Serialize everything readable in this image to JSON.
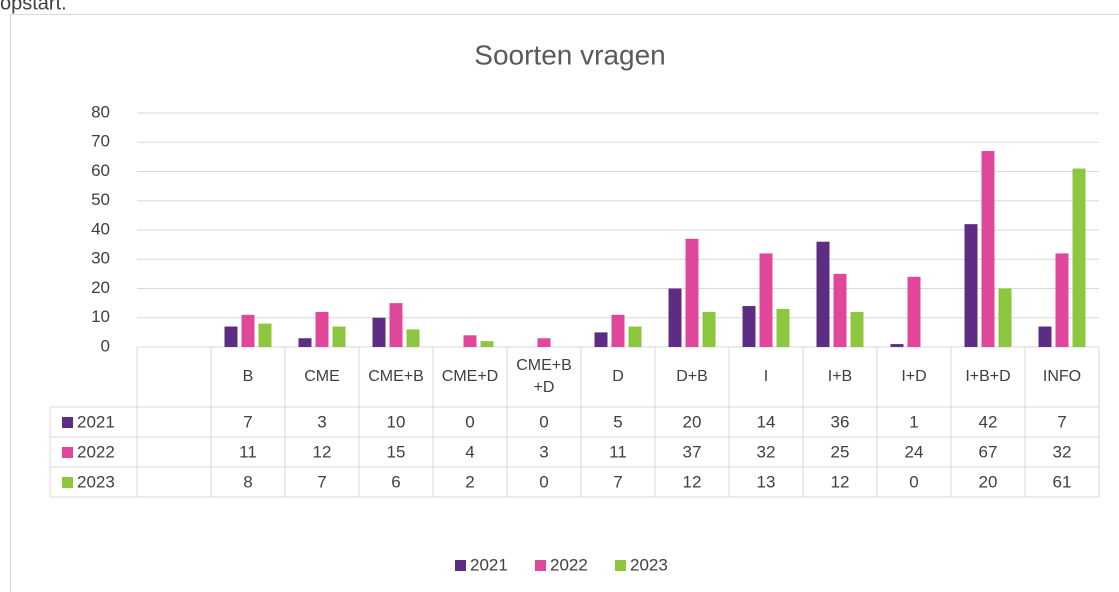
{
  "page_text": "opstart.",
  "chart_data": {
    "type": "bar",
    "title": "Soorten vragen",
    "categories": [
      null,
      "B",
      "CME",
      "CME+B",
      "CME+D",
      "CME+B+D",
      "D",
      "D+B",
      "I",
      "I+B",
      "I+D",
      "I+B+D",
      "INFO"
    ],
    "series": [
      {
        "name": "2021",
        "color": "#5c2d83",
        "values": [
          null,
          7,
          3,
          10,
          0,
          0,
          5,
          20,
          14,
          36,
          1,
          42,
          7
        ]
      },
      {
        "name": "2022",
        "color": "#e0479a",
        "values": [
          null,
          11,
          12,
          15,
          4,
          3,
          11,
          37,
          32,
          25,
          24,
          67,
          32
        ]
      },
      {
        "name": "2023",
        "color": "#8dc63f",
        "values": [
          null,
          8,
          7,
          6,
          2,
          0,
          7,
          12,
          13,
          12,
          0,
          20,
          61
        ]
      }
    ],
    "ylim": [
      0,
      80
    ],
    "yticks": [
      0,
      10,
      20,
      30,
      40,
      50,
      60,
      70,
      80
    ],
    "grid": true,
    "legend": "bottom",
    "data_table": true
  }
}
